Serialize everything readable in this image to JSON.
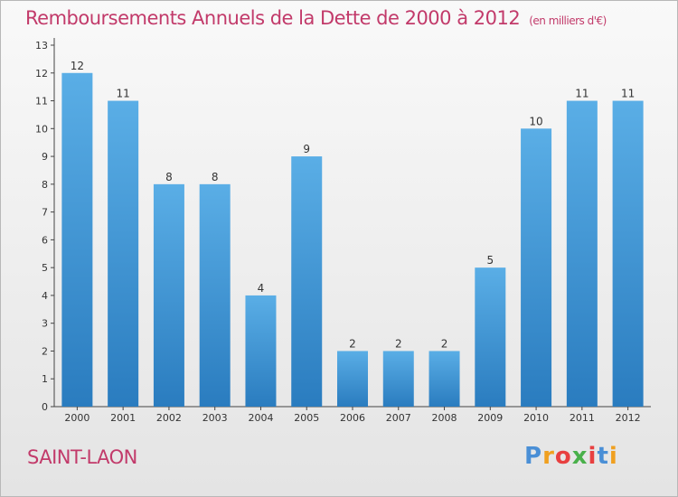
{
  "header": {
    "title": "Remboursements Annuels de la Dette de 2000 à 2012",
    "unit": "(en milliers d'€)"
  },
  "footer": {
    "place": "SAINT-LAON",
    "brand": "Proxiti"
  },
  "colors": {
    "title": "#c23a6a",
    "bar_top": "#5aaee6",
    "bar_bottom": "#2a7cbf"
  },
  "chart_data": {
    "type": "bar",
    "title": "Remboursements Annuels de la Dette de 2000 à 2012",
    "subtitle": "(en milliers d'€)",
    "categories": [
      "2000",
      "2001",
      "2002",
      "2003",
      "2004",
      "2005",
      "2006",
      "2007",
      "2008",
      "2009",
      "2010",
      "2011",
      "2012"
    ],
    "values": [
      12,
      11,
      8,
      8,
      4,
      9,
      2,
      2,
      2,
      5,
      10,
      11,
      11
    ],
    "ylim": [
      0,
      13
    ],
    "yticks": [
      0,
      1,
      2,
      3,
      4,
      5,
      6,
      7,
      8,
      9,
      10,
      11,
      12,
      13
    ],
    "grid": false,
    "legend": "none"
  }
}
